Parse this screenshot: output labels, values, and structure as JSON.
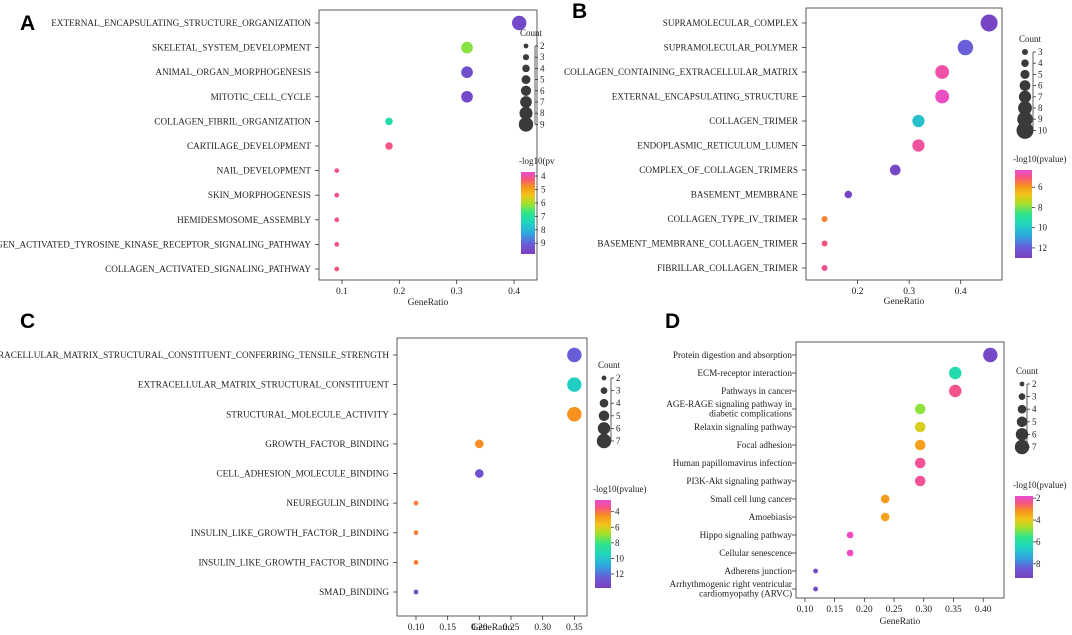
{
  "palette": [
    "#7b3fbf",
    "#6a5bd8",
    "#2fa6e0",
    "#20d4c0",
    "#2ee58a",
    "#a8e028",
    "#f2c418",
    "#f7931e",
    "#f7567a",
    "#e84bd6"
  ],
  "chart_data": [
    {
      "panel": "A",
      "type": "scatter",
      "xlabel": "GeneRatio",
      "xlim": [
        0.06,
        0.44
      ],
      "xticks": [
        0.1,
        0.2,
        0.3,
        0.4
      ],
      "xtick_labels": [
        "0.1",
        "0.2",
        "0.3",
        "0.4"
      ],
      "terms": [
        "EXTERNAL_ENCAPSULATING_STRUCTURE_ORGANIZATION",
        "SKELETAL_SYSTEM_DEVELOPMENT",
        "ANIMAL_ORGAN_MORPHOGENESIS",
        "MITOTIC_CELL_CYCLE",
        "COLLAGEN_FIBRIL_ORGANIZATION",
        "CARTILAGE_DEVELOPMENT",
        "NAIL_DEVELOPMENT",
        "SKIN_MORPHOGENESIS",
        "HEMIDESMOSOME_ASSEMBLY",
        "COLLAGEN_ACTIVATED_TYROSINE_KINASE_RECEPTOR_SIGNALING_PATHWAY",
        "COLLAGEN_ACTIVATED_SIGNALING_PATHWAY"
      ],
      "gene_ratio": [
        0.409,
        0.318,
        0.318,
        0.318,
        0.182,
        0.182,
        0.091,
        0.091,
        0.091,
        0.091,
        0.091
      ],
      "count": [
        9,
        7,
        7,
        7,
        4,
        4,
        2,
        2,
        2,
        2,
        2
      ],
      "neglog10p": [
        9.5,
        6.6,
        9.4,
        9.5,
        7.5,
        4.3,
        4.3,
        4.3,
        4.3,
        4.3,
        4.4
      ],
      "size_legend_title": "Count",
      "size_legend": [
        2,
        3,
        4,
        5,
        6,
        7,
        8,
        9
      ],
      "color_legend_title": "-log10(pv",
      "color_range": [
        3.7,
        9.8
      ],
      "color_ticks": [
        4,
        5,
        6,
        7,
        8,
        9
      ]
    },
    {
      "panel": "B",
      "type": "scatter",
      "xlabel": "GeneRatio",
      "xlim": [
        0.1,
        0.48
      ],
      "xticks": [
        0.2,
        0.3,
        0.4
      ],
      "xtick_labels": [
        "0.2",
        "0.3",
        "0.4"
      ],
      "terms": [
        "SUPRAMOLECULAR_COMPLEX",
        "SUPRAMOLECULAR_POLYMER",
        "COLLAGEN_CONTAINING_EXTRACELLULAR_MATRIX",
        "EXTERNAL_ENCAPSULATING_STRUCTURE",
        "COLLAGEN_TRIMER",
        "ENDOPLASMIC_RETICULUM_LUMEN",
        "COMPLEX_OF_COLLAGEN_TRIMERS",
        "BASEMENT_MEMBRANE",
        "COLLAGEN_TYPE_IV_TRIMER",
        "BASEMENT_MEMBRANE_COLLAGEN_TRIMER",
        "FIBRILLAR_COLLAGEN_TRIMER"
      ],
      "gene_ratio": [
        0.455,
        0.409,
        0.364,
        0.364,
        0.318,
        0.318,
        0.273,
        0.182,
        0.136,
        0.136,
        0.136
      ],
      "count": [
        10,
        9,
        8,
        8,
        7,
        7,
        6,
        4,
        3,
        3,
        3
      ],
      "neglog10p": [
        12.8,
        12.0,
        4.8,
        4.5,
        10.5,
        4.9,
        12.7,
        12.8,
        6.0,
        5.2,
        5.0
      ],
      "size_legend_title": "Count",
      "size_legend": [
        3,
        4,
        5,
        6,
        7,
        8,
        9,
        10
      ],
      "color_legend_title": "-log10(pvalue)",
      "color_range": [
        4.3,
        13.0
      ],
      "color_ticks": [
        6,
        8,
        10,
        12
      ]
    },
    {
      "panel": "C",
      "type": "scatter",
      "xlabel": "GeneRatio",
      "xlim": [
        0.07,
        0.37
      ],
      "xticks": [
        0.1,
        0.15,
        0.2,
        0.25,
        0.3,
        0.35
      ],
      "xtick_labels": [
        "0.10",
        "0.15",
        "0.20",
        "0.25",
        "0.30",
        "0.35"
      ],
      "terms": [
        "EXTRACELLULAR_MATRIX_STRUCTURAL_CONSTITUENT_CONFERRING_TENSILE_STRENGTH",
        "EXTRACELLULAR_MATRIX_STRUCTURAL_CONSTITUENT",
        "STRUCTURAL_MOLECULE_ACTIVITY",
        "GROWTH_FACTOR_BINDING",
        "CELL_ADHESION_MOLECULE_BINDING",
        "NEUREGULIN_BINDING",
        "INSULIN_LIKE_GROWTH_FACTOR_I_BINDING",
        "INSULIN_LIKE_GROWTH_FACTOR_BINDING",
        "SMAD_BINDING"
      ],
      "gene_ratio": [
        0.35,
        0.35,
        0.35,
        0.2,
        0.2,
        0.1,
        0.1,
        0.1,
        0.1
      ],
      "count": [
        7,
        7,
        7,
        4,
        4,
        2,
        2,
        2,
        2
      ],
      "neglog10p": [
        12.5,
        10.2,
        5.0,
        4.9,
        13.0,
        4.6,
        4.6,
        4.6,
        13.0
      ],
      "size_legend_title": "Count",
      "size_legend": [
        2,
        3,
        4,
        5,
        6,
        7
      ],
      "color_legend_title": "-log10(pvalue)",
      "color_range": [
        2.5,
        13.8
      ],
      "color_ticks": [
        4,
        6,
        8,
        10,
        12
      ]
    },
    {
      "panel": "D",
      "type": "scatter",
      "xlabel": "GeneRatio",
      "xlim": [
        0.085,
        0.435
      ],
      "xticks": [
        0.1,
        0.15,
        0.2,
        0.25,
        0.3,
        0.35,
        0.4
      ],
      "xtick_labels": [
        "0.10",
        "0.15",
        "0.20",
        "0.25",
        "0.30",
        "0.35",
        "0.40"
      ],
      "terms": [
        "Protein digestion and absorption",
        "ECM-receptor interaction",
        "Pathways in cancer",
        "AGE-RAGE signaling pathway in diabetic complications",
        "Relaxin signaling pathway",
        "Focal adhesion",
        "Human papillomavirus infection",
        "PI3K-Akt signaling pathway",
        "Small cell lung cancer",
        "Amoebiasis",
        "Hippo signaling pathway",
        "Cellular senescence",
        "Adherens junction",
        "Arrhythmogenic right ventricular cardiomyopathy (ARVC)"
      ],
      "gene_ratio": [
        0.412,
        0.353,
        0.353,
        0.294,
        0.294,
        0.294,
        0.294,
        0.294,
        0.235,
        0.235,
        0.176,
        0.176,
        0.118,
        0.118
      ],
      "count": [
        7,
        6,
        6,
        5,
        5,
        5,
        5,
        5,
        4,
        4,
        3,
        3,
        2,
        2
      ],
      "neglog10p": [
        9.0,
        6.5,
        2.5,
        5.3,
        4.6,
        3.7,
        2.4,
        2.4,
        3.6,
        3.7,
        2.0,
        2.0,
        9.0,
        9.0
      ],
      "size_legend_title": "Count",
      "size_legend": [
        2,
        3,
        4,
        5,
        6,
        7
      ],
      "color_legend_title": "-log10(pvalue)",
      "color_range": [
        1.8,
        9.3
      ],
      "color_ticks": [
        2,
        4,
        6,
        8
      ]
    }
  ]
}
